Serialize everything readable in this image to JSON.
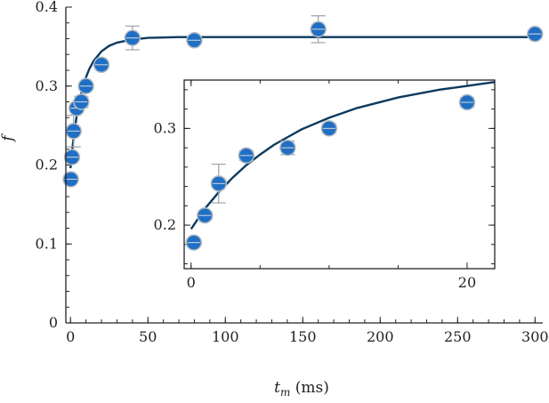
{
  "chart_data": [
    {
      "panel": "main",
      "type": "scatter",
      "xlabel": "t_m (ms)",
      "ylabel": "f",
      "xlim": [
        -3,
        305
      ],
      "ylim": [
        0,
        0.4
      ],
      "xticks": [
        0,
        50,
        100,
        150,
        200,
        250,
        300
      ],
      "yticks": [
        0,
        0.1,
        0.2,
        0.3,
        0.4
      ],
      "ytick_labels": [
        "0",
        "0.1",
        "0.2",
        "0.3",
        "0.4"
      ],
      "grid": false,
      "legend": "none",
      "marker_color": "#1f6fc5",
      "curve_color": "#0b3a5f",
      "errorbar_color": "#9aa0a6",
      "points": [
        {
          "x": 0.2,
          "y": 0.182,
          "err": 0.004
        },
        {
          "x": 1,
          "y": 0.21,
          "err": 0.004
        },
        {
          "x": 2,
          "y": 0.243,
          "err": 0.02
        },
        {
          "x": 4,
          "y": 0.272,
          "err": 0.005
        },
        {
          "x": 7,
          "y": 0.28,
          "err": 0.007
        },
        {
          "x": 10,
          "y": 0.3,
          "err": 0.005
        },
        {
          "x": 20,
          "y": 0.327,
          "err": 0.005
        },
        {
          "x": 40,
          "y": 0.361,
          "err": 0.015
        },
        {
          "x": 80,
          "y": 0.358,
          "err": 0.005
        },
        {
          "x": 160,
          "y": 0.372,
          "err": 0.017
        },
        {
          "x": 300,
          "y": 0.366,
          "err": 0.005
        }
      ],
      "fit_curve": {
        "x": [
          0,
          1,
          2,
          3,
          4,
          5,
          6,
          7,
          8,
          10,
          12,
          15,
          20,
          25,
          30,
          40,
          50,
          70,
          100,
          150,
          200,
          250,
          300
        ],
        "y": [
          0.196,
          0.217,
          0.234,
          0.249,
          0.262,
          0.273,
          0.283,
          0.291,
          0.299,
          0.311,
          0.321,
          0.332,
          0.344,
          0.351,
          0.355,
          0.359,
          0.361,
          0.362,
          0.362,
          0.362,
          0.362,
          0.362,
          0.362
        ]
      }
    },
    {
      "panel": "inset",
      "type": "scatter",
      "xlim": [
        -0.5,
        22
      ],
      "ylim": [
        0.155,
        0.35
      ],
      "xticks": [
        0,
        20
      ],
      "yticks": [
        0.2,
        0.3
      ],
      "ytick_labels": [
        "0.2",
        "0.3"
      ],
      "grid": false,
      "legend": "none",
      "points": [
        {
          "x": 0.2,
          "y": 0.182,
          "err": 0.004
        },
        {
          "x": 1,
          "y": 0.21,
          "err": 0.004
        },
        {
          "x": 2,
          "y": 0.243,
          "err": 0.02
        },
        {
          "x": 4,
          "y": 0.272,
          "err": 0.005
        },
        {
          "x": 7,
          "y": 0.28,
          "err": 0.007
        },
        {
          "x": 10,
          "y": 0.3,
          "err": 0.005
        },
        {
          "x": 20,
          "y": 0.327,
          "err": 0.005
        }
      ],
      "fit_curve": {
        "x": [
          0,
          1,
          2,
          3,
          4,
          5,
          6,
          7,
          8,
          10,
          12,
          15,
          18,
          20,
          22
        ],
        "y": [
          0.196,
          0.217,
          0.234,
          0.249,
          0.262,
          0.273,
          0.283,
          0.291,
          0.299,
          0.311,
          0.321,
          0.332,
          0.34,
          0.344,
          0.348
        ]
      }
    }
  ]
}
